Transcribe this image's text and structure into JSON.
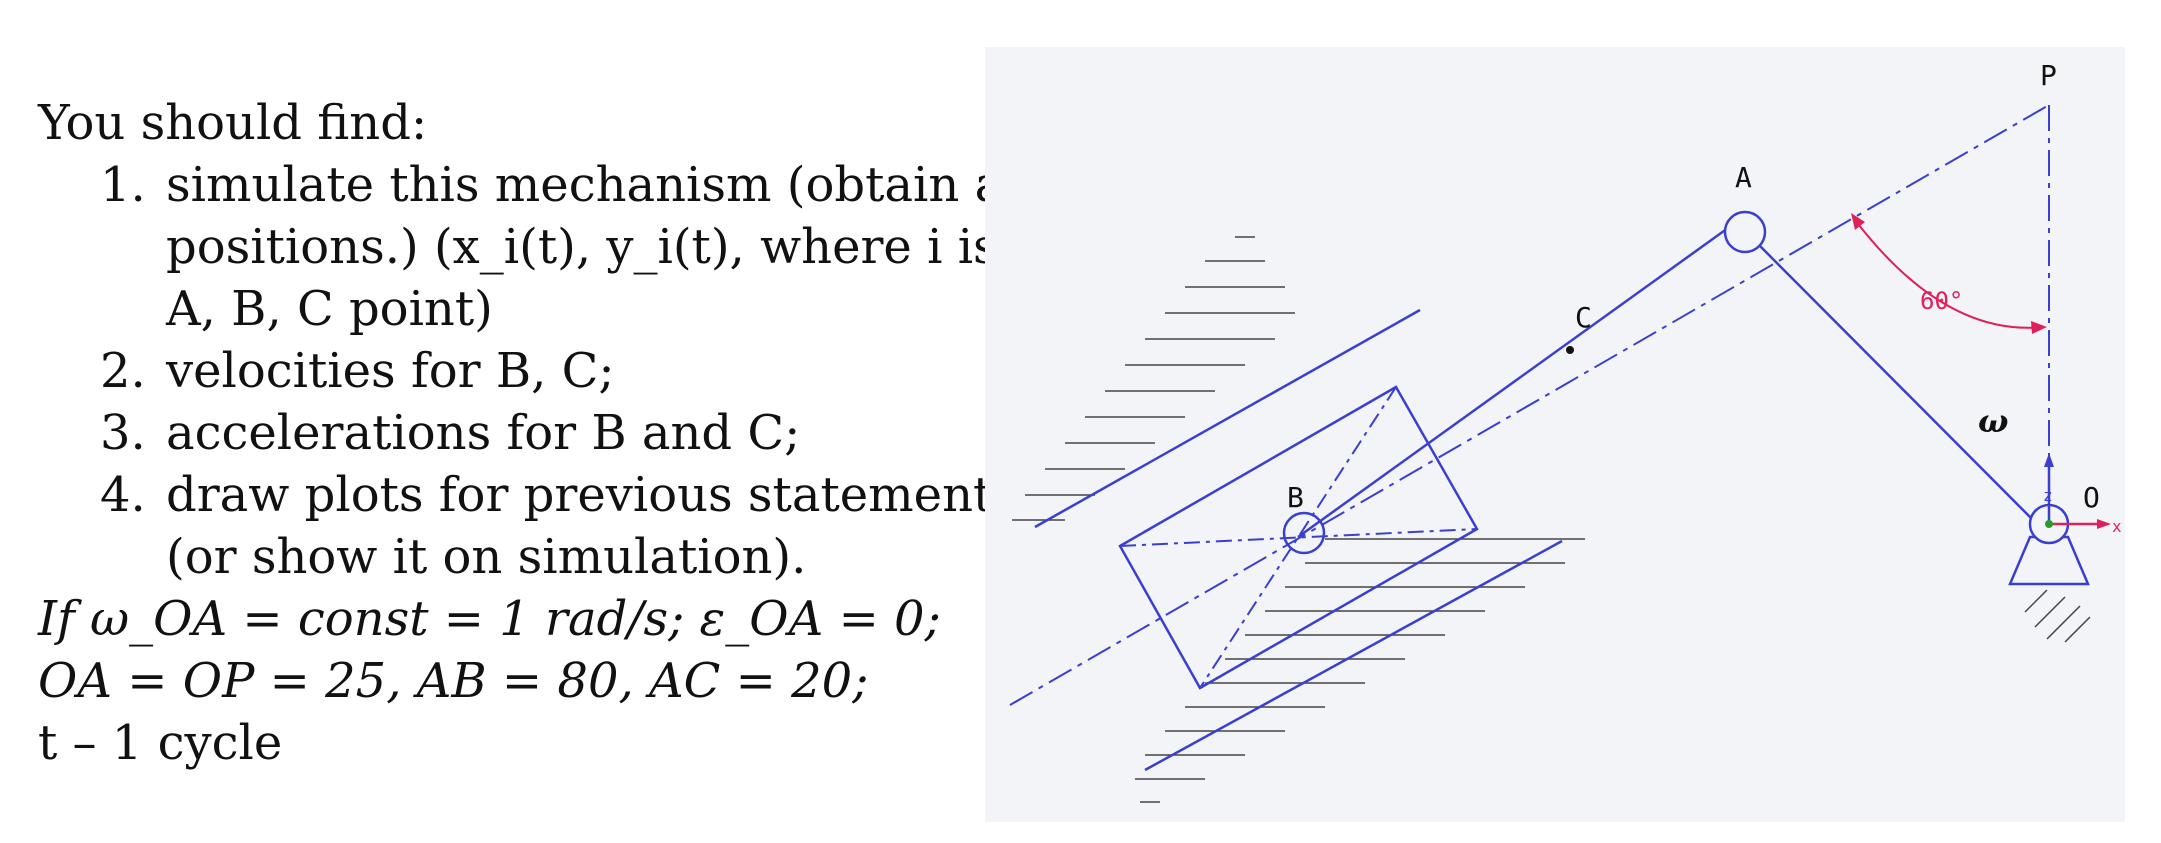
{
  "problem": {
    "intro": "You should find:",
    "tasks": [
      {
        "num": "1.",
        "lines": [
          "simulate this mechanism (obtain all",
          "positions.)  (x_i(t),  y_i(t), where i is",
          "A,  B,  C point)"
        ]
      },
      {
        "num": "2.",
        "lines": [
          "velocities for B, C;"
        ]
      },
      {
        "num": "3.",
        "lines": [
          "accelerations for B and C;"
        ]
      },
      {
        "num": "4.",
        "lines": [
          "draw plots for previous statements",
          "(or show it on simulation)."
        ]
      }
    ],
    "conditions": [
      "If ω_OA = const = 1 rad/s; ε_OA = 0;",
      "OA = OP = 25, AB = 80, AC = 20;",
      "t – 1 cycle"
    ]
  },
  "diagram": {
    "labels": {
      "P": "P",
      "A": "A",
      "C": "C",
      "B": "B",
      "O": "O",
      "omega": "ω",
      "angle": "60°",
      "axis_z": "z",
      "axis_x": "x"
    },
    "colors": {
      "mechanism": "#3a3fd0",
      "angle": "#e0205a",
      "ground": "#444444",
      "background": "#f2f4f7"
    }
  }
}
